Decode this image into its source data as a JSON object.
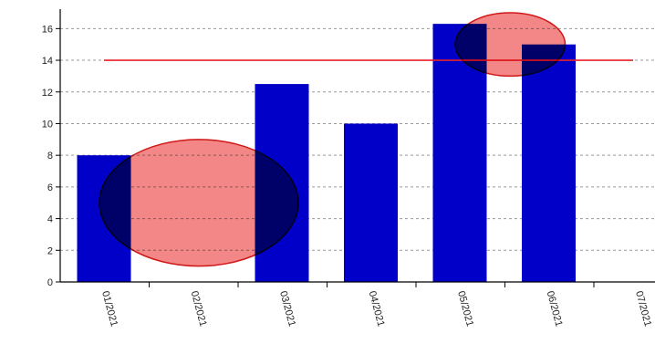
{
  "chart_data": {
    "type": "bar",
    "categories": [
      "01/2021",
      "02/2021",
      "03/2021",
      "04/2021",
      "05/2021",
      "06/2021",
      "07/2021"
    ],
    "values": [
      8,
      0,
      12.5,
      10,
      16.3,
      15,
      0
    ],
    "ylim": [
      0,
      17
    ],
    "yticks": [
      0,
      2,
      4,
      6,
      8,
      10,
      12,
      14,
      16
    ],
    "grid": "horizontal-dashed",
    "reference_line": {
      "value": 14,
      "color": "#e8202a"
    },
    "bar_color": "#0000c8",
    "highlight_color": "#f06464",
    "highlights": [
      {
        "covers": [
          "01/2021",
          "02/2021",
          "03/2021"
        ],
        "y_range": [
          1,
          9
        ]
      },
      {
        "covers": [
          "05/2021",
          "06/2021"
        ],
        "y_range": [
          13,
          17
        ]
      }
    ]
  }
}
